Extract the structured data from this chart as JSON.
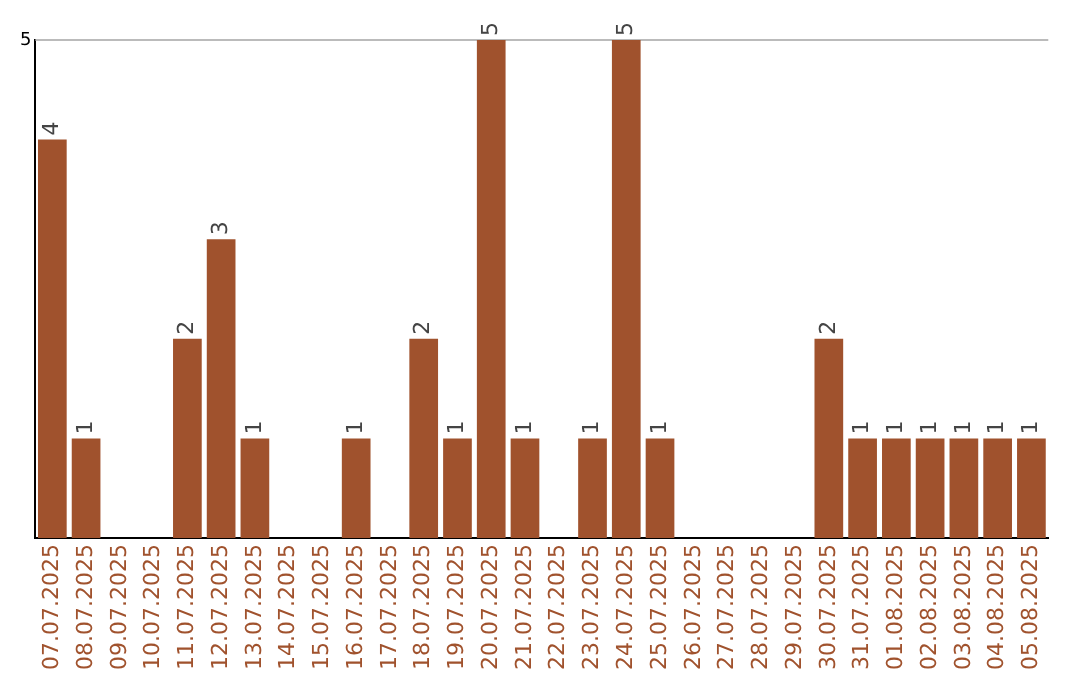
{
  "chart_data": {
    "type": "bar",
    "categories": [
      "07.07.2025",
      "08.07.2025",
      "09.07.2025",
      "10.07.2025",
      "11.07.2025",
      "12.07.2025",
      "13.07.2025",
      "14.07.2025",
      "15.07.2025",
      "16.07.2025",
      "17.07.2025",
      "18.07.2025",
      "19.07.2025",
      "20.07.2025",
      "21.07.2025",
      "22.07.2025",
      "23.07.2025",
      "24.07.2025",
      "25.07.2025",
      "26.07.2025",
      "27.07.2025",
      "28.07.2025",
      "29.07.2025",
      "30.07.2025",
      "31.07.2025",
      "01.08.2025",
      "02.08.2025",
      "03.08.2025",
      "04.08.2025",
      "05.08.2025"
    ],
    "values": [
      4,
      1,
      0,
      0,
      2,
      3,
      1,
      0,
      0,
      1,
      0,
      2,
      1,
      5,
      1,
      0,
      1,
      5,
      1,
      0,
      0,
      0,
      0,
      2,
      1,
      1,
      1,
      1,
      1,
      1
    ],
    "value_labels": [
      "4",
      "1",
      null,
      null,
      "2",
      "3",
      "1",
      null,
      null,
      "1",
      null,
      "2",
      "1",
      "5",
      "1",
      null,
      "1",
      "5",
      "1",
      null,
      null,
      null,
      null,
      "2",
      "1",
      "1",
      "1",
      "1",
      "1",
      "1"
    ],
    "color": "#a0522d",
    "ylim": [
      0,
      5
    ],
    "yticks": [
      5
    ],
    "ref_lines": [
      {
        "axis": "y",
        "value": 5,
        "color": "#bbbbbb"
      }
    ],
    "legend": false
  }
}
